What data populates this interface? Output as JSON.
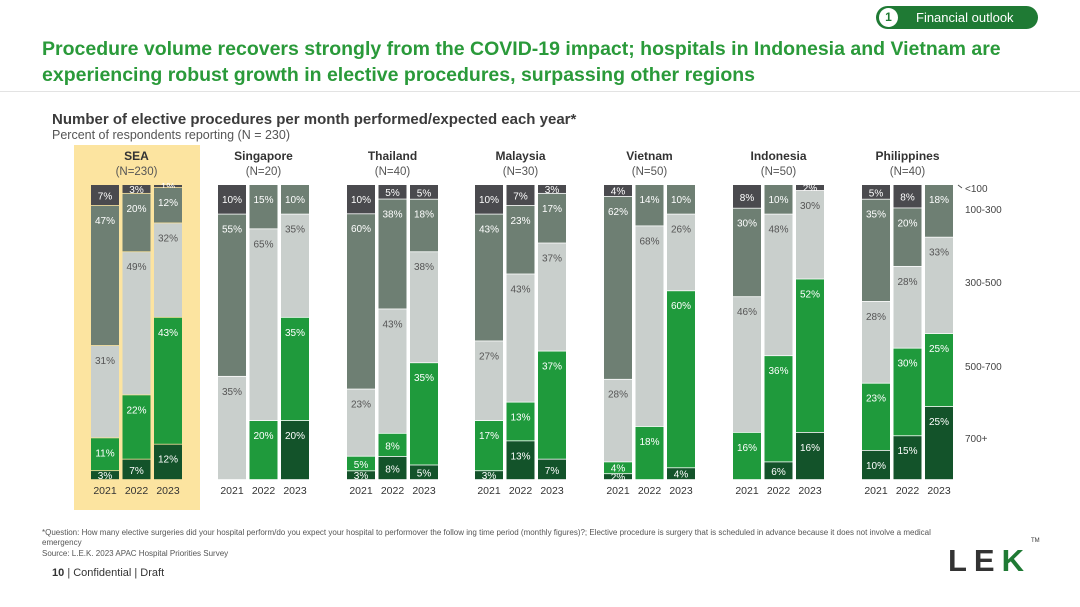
{
  "badge": {
    "number": "1",
    "label": "Financial outlook"
  },
  "headline": "Procedure volume recovers strongly from the COVID-19 impact; hospitals in Indonesia and Vietnam are experiencing robust growth in elective procedures, surpassing other regions",
  "colors": {
    "lt100": "#4a4a4e",
    "r100_300": "#6e7f73",
    "r300_500": "#c9cfcc",
    "r500_700": "#1f9a3c",
    "gt700": "#13532a",
    "highlight": "#fce4a0"
  },
  "chart_data": {
    "type": "bar",
    "stacked": true,
    "percent": true,
    "title": "Number of elective procedures per month performed/expected each year*",
    "subtitle": "Percent of respondents reporting (N = 230)",
    "years": [
      "2021",
      "2022",
      "2023"
    ],
    "categories": [
      "<100",
      "100-300",
      "300-500",
      "500-700",
      "700+"
    ],
    "legend_labels": [
      "<100",
      "100-300",
      "300-500",
      "500-700",
      "700+"
    ],
    "legend_placement": "right",
    "highlighted_group": "SEA",
    "groups": [
      {
        "name": "SEA",
        "n": "(N=230)",
        "bars": [
          {
            "year": "2021",
            "segments": [
              7,
              47,
              31,
              11,
              3
            ],
            "labels": [
              "7%",
              "47%",
              "31%",
              "11%",
              "3%"
            ]
          },
          {
            "year": "2022",
            "segments": [
              3,
              20,
              49,
              22,
              7
            ],
            "labels": [
              "3%",
              "20%",
              "49%",
              "22%",
              "7%"
            ]
          },
          {
            "year": "2023",
            "segments": [
              1,
              12,
              32,
              43,
              12
            ],
            "labels": [
              "1%",
              "12%",
              "32%",
              "43%",
              "12%"
            ]
          }
        ]
      },
      {
        "name": "Singapore",
        "n": "(N=20)",
        "bars": [
          {
            "year": "2021",
            "segments": [
              10,
              55,
              35,
              0,
              0
            ],
            "labels": [
              "10%",
              "55%",
              "35%",
              "",
              ""
            ]
          },
          {
            "year": "2022",
            "segments": [
              0,
              15,
              65,
              20,
              0
            ],
            "labels": [
              "",
              "15%",
              "65%",
              "20%",
              ""
            ]
          },
          {
            "year": "2023",
            "segments": [
              0,
              10,
              35,
              35,
              20
            ],
            "labels": [
              "",
              "10%",
              "35%",
              "35%",
              "20%"
            ]
          }
        ]
      },
      {
        "name": "Thailand",
        "n": "(N=40)",
        "bars": [
          {
            "year": "2021",
            "segments": [
              10,
              60,
              23,
              5,
              3
            ],
            "labels": [
              "10%",
              "60%",
              "23%",
              "5%",
              "3%"
            ]
          },
          {
            "year": "2022",
            "segments": [
              5,
              38,
              43,
              8,
              8
            ],
            "labels": [
              "5%",
              "38%",
              "43%",
              "8%",
              "8%"
            ]
          },
          {
            "year": "2023",
            "segments": [
              5,
              18,
              38,
              35,
              5
            ],
            "labels": [
              "5%",
              "18%",
              "38%",
              "35%",
              "5%"
            ]
          }
        ]
      },
      {
        "name": "Malaysia",
        "n": "(N=30)",
        "bars": [
          {
            "year": "2021",
            "segments": [
              10,
              43,
              27,
              17,
              3
            ],
            "labels": [
              "10%",
              "43%",
              "27%",
              "17%",
              "3%"
            ]
          },
          {
            "year": "2022",
            "segments": [
              7,
              23,
              43,
              13,
              13
            ],
            "labels": [
              "7%",
              "23%",
              "43%",
              "13%",
              "13%"
            ]
          },
          {
            "year": "2023",
            "segments": [
              3,
              17,
              37,
              37,
              7
            ],
            "labels": [
              "3%",
              "17%",
              "37%",
              "37%",
              "7%"
            ]
          }
        ]
      },
      {
        "name": "Vietnam",
        "n": "(N=50)",
        "bars": [
          {
            "year": "2021",
            "segments": [
              4,
              62,
              28,
              4,
              2
            ],
            "labels": [
              "4%",
              "62%",
              "28%",
              "4%",
              "2%"
            ]
          },
          {
            "year": "2022",
            "segments": [
              0,
              14,
              68,
              18,
              0
            ],
            "labels": [
              "",
              "14%",
              "68%",
              "18%",
              ""
            ]
          },
          {
            "year": "2023",
            "segments": [
              0,
              10,
              26,
              60,
              4
            ],
            "labels": [
              "",
              "10%",
              "26%",
              "60%",
              "4%"
            ]
          }
        ]
      },
      {
        "name": "Indonesia",
        "n": "(N=50)",
        "bars": [
          {
            "year": "2021",
            "segments": [
              8,
              30,
              46,
              16,
              0
            ],
            "labels": [
              "8%",
              "30%",
              "46%",
              "16%",
              ""
            ]
          },
          {
            "year": "2022",
            "segments": [
              0,
              10,
              48,
              36,
              6
            ],
            "labels": [
              "",
              "10%",
              "48%",
              "36%",
              "6%"
            ]
          },
          {
            "year": "2023",
            "segments": [
              2,
              0,
              30,
              52,
              16
            ],
            "labels": [
              "2%",
              "",
              "30%",
              "52%",
              "16%"
            ]
          }
        ]
      },
      {
        "name": "Philippines",
        "n": "(N=40)",
        "bars": [
          {
            "year": "2021",
            "segments": [
              5,
              35,
              28,
              23,
              10
            ],
            "labels": [
              "5%",
              "35%",
              "28%",
              "23%",
              "10%"
            ]
          },
          {
            "year": "2022",
            "segments": [
              8,
              20,
              28,
              30,
              15
            ],
            "labels": [
              "8%",
              "20%",
              "28%",
              "30%",
              "15%"
            ]
          },
          {
            "year": "2023",
            "segments": [
              0,
              18,
              33,
              25,
              25
            ],
            "labels": [
              "",
              "18%",
              "33%",
              "25%",
              "25%"
            ]
          }
        ]
      }
    ]
  },
  "footnote": "*Question:  How many elective surgeries did your hospital perform/do you expect your hospital to performover the follow ing time period (monthly figures)?; Elective procedure is surgery that is scheduled in advance because it does not involve a medical emergency",
  "source": "Source: L.E.K. 2023 APAC Hospital Priorities Survey",
  "page": {
    "number": "10",
    "text": "| Confidential | Draft"
  },
  "logo": {
    "text": "LEK",
    "tm": "TM"
  }
}
